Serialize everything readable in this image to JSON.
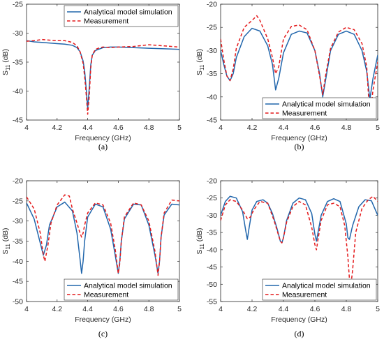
{
  "colors": {
    "simulation": "#2166AC",
    "measurement": "#E41A1C",
    "axis": "#262626"
  },
  "chart_data": [
    {
      "type": "line",
      "panel_label": "(a)",
      "xlabel": "Frequency (GHz)",
      "ylabel_main": "S",
      "ylabel_sub": "11",
      "ylabel_unit": " (dB)",
      "xlim": [
        4,
        5
      ],
      "ylim": [
        -45,
        -25
      ],
      "xticks": [
        4,
        4.2,
        4.4,
        4.6,
        4.8,
        5
      ],
      "xtick_labels": [
        "4",
        "4.2",
        "4.4",
        "4.6",
        "4.8",
        "5"
      ],
      "yticks": [
        -45,
        -40,
        -35,
        -30,
        -25
      ],
      "ytick_labels": [
        "-45",
        "-40",
        "-35",
        "-30",
        "-25"
      ],
      "legend_position": "top-right",
      "series": [
        {
          "name": "Analytical model simulation",
          "style": "solid",
          "x": [
            4.0,
            4.05,
            4.1,
            4.15,
            4.2,
            4.25,
            4.3,
            4.33,
            4.35,
            4.37,
            4.38,
            4.39,
            4.4,
            4.41,
            4.42,
            4.43,
            4.45,
            4.48,
            4.5,
            4.55,
            4.6,
            4.7,
            4.8,
            4.9,
            5.0
          ],
          "y": [
            -31.3,
            -31.5,
            -31.6,
            -31.7,
            -31.8,
            -31.9,
            -32.1,
            -32.5,
            -33.2,
            -34.8,
            -36.5,
            -39.5,
            -43.0,
            -39.5,
            -35.5,
            -33.8,
            -33.0,
            -32.7,
            -32.5,
            -32.4,
            -32.4,
            -32.5,
            -32.6,
            -32.7,
            -32.8
          ]
        },
        {
          "name": "Measurement",
          "style": "dashed",
          "x": [
            4.0,
            4.05,
            4.1,
            4.15,
            4.2,
            4.25,
            4.3,
            4.33,
            4.35,
            4.37,
            4.38,
            4.39,
            4.4,
            4.41,
            4.42,
            4.43,
            4.45,
            4.48,
            4.5,
            4.55,
            4.6,
            4.7,
            4.8,
            4.9,
            5.0
          ],
          "y": [
            -31.4,
            -31.3,
            -31.1,
            -31.2,
            -31.3,
            -31.3,
            -31.6,
            -32.2,
            -33.2,
            -35.2,
            -37.5,
            -40.5,
            -44.0,
            -41.0,
            -36.0,
            -33.8,
            -32.8,
            -32.5,
            -32.4,
            -32.5,
            -32.4,
            -32.3,
            -32.0,
            -32.2,
            -32.4
          ]
        }
      ]
    },
    {
      "type": "line",
      "panel_label": "(b)",
      "xlabel": "Frequency (GHz)",
      "ylabel_main": "S",
      "ylabel_sub": "11",
      "ylabel_unit": " (dB)",
      "xlim": [
        4,
        5
      ],
      "ylim": [
        -45,
        -20
      ],
      "xticks": [
        4,
        4.2,
        4.4,
        4.6,
        4.8,
        5
      ],
      "xtick_labels": [
        "4",
        "4.2",
        "4.4",
        "4.6",
        "4.8",
        "5"
      ],
      "yticks": [
        -45,
        -40,
        -35,
        -30,
        -25,
        -20
      ],
      "ytick_labels": [
        "-45",
        "-40",
        "-35",
        "-30",
        "-25",
        "-20"
      ],
      "legend_position": "bottom-right",
      "series": [
        {
          "name": "Analytical model simulation",
          "style": "solid",
          "x": [
            4.0,
            4.02,
            4.04,
            4.06,
            4.08,
            4.1,
            4.15,
            4.2,
            4.25,
            4.3,
            4.33,
            4.35,
            4.37,
            4.4,
            4.45,
            4.5,
            4.55,
            4.6,
            4.63,
            4.65,
            4.67,
            4.7,
            4.75,
            4.8,
            4.85,
            4.9,
            4.93,
            4.95,
            4.97,
            5.0
          ],
          "y": [
            -30.0,
            -33.0,
            -35.5,
            -36.5,
            -35.0,
            -31.5,
            -27.0,
            -25.2,
            -25.8,
            -29.0,
            -33.0,
            -38.5,
            -36.0,
            -30.5,
            -26.5,
            -25.8,
            -26.2,
            -30.0,
            -35.0,
            -40.0,
            -36.0,
            -30.0,
            -26.5,
            -25.8,
            -26.5,
            -30.0,
            -34.5,
            -40.5,
            -36.0,
            -31.0
          ]
        },
        {
          "name": "Measurement",
          "style": "dashed",
          "x": [
            4.0,
            4.02,
            4.04,
            4.06,
            4.08,
            4.1,
            4.15,
            4.2,
            4.23,
            4.25,
            4.3,
            4.33,
            4.35,
            4.37,
            4.4,
            4.45,
            4.5,
            4.55,
            4.6,
            4.63,
            4.65,
            4.67,
            4.7,
            4.75,
            4.8,
            4.85,
            4.9,
            4.93,
            4.95,
            4.97,
            5.0
          ],
          "y": [
            -27.5,
            -32.0,
            -35.5,
            -36.5,
            -34.0,
            -29.5,
            -25.0,
            -23.5,
            -22.5,
            -23.5,
            -27.5,
            -31.5,
            -35.0,
            -33.5,
            -27.5,
            -24.8,
            -24.5,
            -25.5,
            -30.0,
            -35.5,
            -39.5,
            -35.0,
            -29.5,
            -26.0,
            -25.0,
            -25.5,
            -28.5,
            -33.5,
            -44.5,
            -38.5,
            -32.5
          ]
        }
      ]
    },
    {
      "type": "line",
      "panel_label": "(c)",
      "xlabel": "Frequency (GHz)",
      "ylabel_main": "S",
      "ylabel_sub": "11",
      "ylabel_unit": " (dB)",
      "xlim": [
        4,
        5
      ],
      "ylim": [
        -50,
        -20
      ],
      "xticks": [
        4,
        4.2,
        4.4,
        4.6,
        4.8,
        5
      ],
      "xtick_labels": [
        "4",
        "4.2",
        "4.4",
        "4.6",
        "4.8",
        "5"
      ],
      "yticks": [
        -50,
        -45,
        -40,
        -35,
        -30,
        -25,
        -20
      ],
      "ytick_labels": [
        "-50",
        "-45",
        "-40",
        "-35",
        "-30",
        "-25",
        "-20"
      ],
      "legend_position": "bottom-right",
      "series": [
        {
          "name": "Analytical model simulation",
          "style": "solid",
          "x": [
            4.0,
            4.05,
            4.09,
            4.11,
            4.13,
            4.15,
            4.2,
            4.25,
            4.3,
            4.33,
            4.35,
            4.36,
            4.37,
            4.38,
            4.4,
            4.45,
            4.5,
            4.55,
            4.58,
            4.6,
            4.61,
            4.62,
            4.64,
            4.7,
            4.75,
            4.8,
            4.84,
            4.86,
            4.87,
            4.88,
            4.9,
            4.95,
            5.0
          ],
          "y": [
            -25.5,
            -29.5,
            -35.5,
            -38.5,
            -36.0,
            -31.0,
            -26.5,
            -25.3,
            -27.5,
            -33.0,
            -39.5,
            -43.0,
            -40.0,
            -35.0,
            -29.0,
            -25.8,
            -26.5,
            -32.0,
            -38.5,
            -43.0,
            -40.0,
            -35.0,
            -29.5,
            -25.8,
            -26.0,
            -31.0,
            -38.5,
            -43.0,
            -40.0,
            -34.0,
            -28.5,
            -25.8,
            -26.0
          ]
        },
        {
          "name": "Measurement",
          "style": "dashed",
          "x": [
            4.0,
            4.05,
            4.09,
            4.11,
            4.12,
            4.14,
            4.16,
            4.2,
            4.25,
            4.28,
            4.3,
            4.33,
            4.35,
            4.36,
            4.37,
            4.38,
            4.4,
            4.45,
            4.5,
            4.55,
            4.58,
            4.6,
            4.61,
            4.62,
            4.64,
            4.7,
            4.75,
            4.8,
            4.84,
            4.86,
            4.87,
            4.88,
            4.9,
            4.95,
            5.0
          ],
          "y": [
            -24.0,
            -27.0,
            -33.0,
            -38.5,
            -40.0,
            -36.0,
            -30.5,
            -26.0,
            -23.5,
            -23.8,
            -27.0,
            -30.5,
            -33.0,
            -34.0,
            -33.0,
            -31.0,
            -28.0,
            -25.5,
            -26.0,
            -30.5,
            -37.0,
            -43.0,
            -40.5,
            -35.0,
            -29.0,
            -25.5,
            -26.0,
            -30.0,
            -37.5,
            -43.5,
            -40.0,
            -34.0,
            -28.0,
            -24.8,
            -25.0
          ]
        }
      ]
    },
    {
      "type": "line",
      "panel_label": "(d)",
      "xlabel": "Frequency (GHz)",
      "ylabel_main": "S",
      "ylabel_sub": "11",
      "ylabel_unit": " (dB)",
      "xlim": [
        4,
        5
      ],
      "ylim": [
        -55,
        -20
      ],
      "xticks": [
        4,
        4.2,
        4.4,
        4.6,
        4.8,
        5
      ],
      "xtick_labels": [
        "4",
        "4.2",
        "4.4",
        "4.6",
        "4.8",
        "5"
      ],
      "yticks": [
        -55,
        -50,
        -45,
        -40,
        -35,
        -30,
        -25,
        -20
      ],
      "ytick_labels": [
        "-55",
        "-50",
        "-45",
        "-40",
        "-35",
        "-30",
        "-25",
        "-20"
      ],
      "legend_position": "bottom-right",
      "series": [
        {
          "name": "Analytical model simulation",
          "style": "solid",
          "x": [
            4.0,
            4.03,
            4.06,
            4.1,
            4.14,
            4.16,
            4.17,
            4.18,
            4.2,
            4.23,
            4.27,
            4.3,
            4.33,
            4.36,
            4.38,
            4.39,
            4.4,
            4.42,
            4.46,
            4.5,
            4.54,
            4.58,
            4.6,
            4.61,
            4.62,
            4.64,
            4.68,
            4.72,
            4.76,
            4.8,
            4.81,
            4.82,
            4.84,
            4.88,
            4.92,
            4.96,
            5.0
          ],
          "y": [
            -30.0,
            -26.0,
            -24.5,
            -25.0,
            -29.0,
            -34.5,
            -37.0,
            -34.0,
            -28.5,
            -26.0,
            -25.5,
            -26.5,
            -29.5,
            -34.0,
            -37.5,
            -38.0,
            -36.5,
            -31.5,
            -26.5,
            -25.0,
            -25.5,
            -29.5,
            -35.5,
            -37.5,
            -35.0,
            -30.0,
            -26.0,
            -25.2,
            -26.0,
            -32.5,
            -36.5,
            -37.0,
            -33.0,
            -27.5,
            -25.5,
            -25.8,
            -30.0
          ]
        },
        {
          "name": "Measurement",
          "style": "dashed",
          "x": [
            4.0,
            4.03,
            4.06,
            4.1,
            4.14,
            4.17,
            4.19,
            4.21,
            4.25,
            4.3,
            4.34,
            4.38,
            4.39,
            4.4,
            4.42,
            4.46,
            4.5,
            4.54,
            4.58,
            4.6,
            4.61,
            4.62,
            4.64,
            4.68,
            4.72,
            4.76,
            4.79,
            4.81,
            4.82,
            4.83,
            4.84,
            4.86,
            4.9,
            4.94,
            4.97,
            5.0
          ],
          "y": [
            -31.5,
            -27.0,
            -25.5,
            -26.0,
            -28.5,
            -31.0,
            -30.5,
            -28.5,
            -26.0,
            -26.5,
            -31.5,
            -37.5,
            -38.0,
            -36.5,
            -32.0,
            -27.5,
            -26.0,
            -27.0,
            -33.5,
            -38.5,
            -40.0,
            -37.0,
            -31.5,
            -27.0,
            -26.5,
            -27.5,
            -33.0,
            -42.0,
            -48.5,
            -50.0,
            -46.0,
            -35.0,
            -28.0,
            -25.5,
            -24.5,
            -26.0
          ]
        }
      ]
    }
  ]
}
